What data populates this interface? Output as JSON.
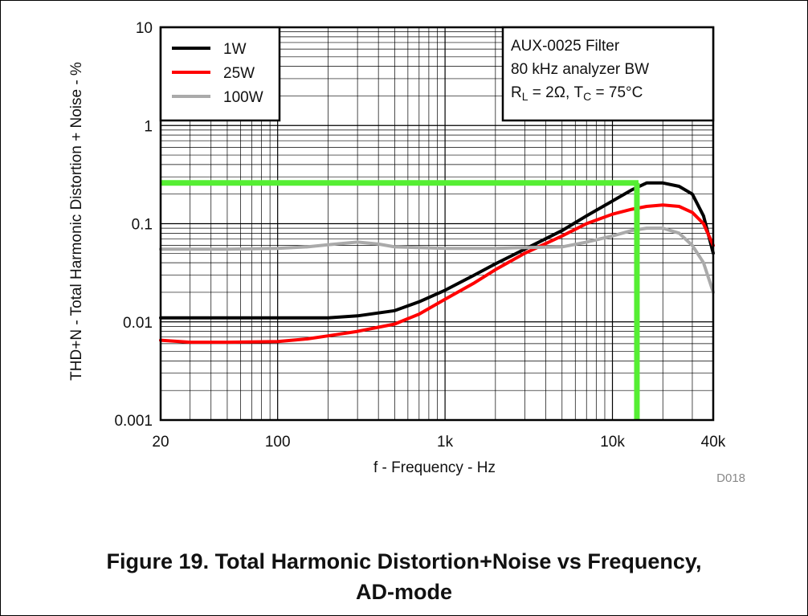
{
  "chart_data": {
    "type": "line",
    "ylabel": "THD+N - Total Harmonic Distortion + Noise - %",
    "xlabel": "f - Frequency - Hz",
    "x_scale": "log",
    "y_scale": "log",
    "xlim": [
      20,
      40000
    ],
    "ylim": [
      0.001,
      10
    ],
    "x_ticks": [
      {
        "value": 20,
        "label": "20"
      },
      {
        "value": 100,
        "label": "100"
      },
      {
        "value": 1000,
        "label": "1k"
      },
      {
        "value": 10000,
        "label": "10k"
      },
      {
        "value": 40000,
        "label": "40k"
      }
    ],
    "y_ticks": [
      {
        "value": 10,
        "label": "10"
      },
      {
        "value": 1,
        "label": "1"
      },
      {
        "value": 0.1,
        "label": "0.1"
      },
      {
        "value": 0.01,
        "label": "0.01"
      },
      {
        "value": 0.001,
        "label": "0.001"
      }
    ],
    "grid": true,
    "legend_placement": "top-left",
    "series": [
      {
        "name": "1W",
        "color": "#000000",
        "x": [
          20,
          30,
          50,
          100,
          200,
          300,
          500,
          700,
          1000,
          1500,
          2000,
          3000,
          5000,
          7000,
          10000,
          13000,
          16000,
          20000,
          25000,
          30000,
          35000,
          40000
        ],
        "y": [
          0.011,
          0.011,
          0.011,
          0.011,
          0.011,
          0.0115,
          0.013,
          0.016,
          0.021,
          0.03,
          0.039,
          0.055,
          0.085,
          0.12,
          0.17,
          0.22,
          0.26,
          0.26,
          0.24,
          0.2,
          0.12,
          0.05
        ]
      },
      {
        "name": "25W",
        "color": "#ff0000",
        "x": [
          20,
          30,
          50,
          100,
          150,
          200,
          300,
          500,
          700,
          1000,
          1500,
          2000,
          3000,
          5000,
          7000,
          10000,
          13000,
          16000,
          20000,
          25000,
          30000,
          35000,
          40000
        ],
        "y": [
          0.0065,
          0.0062,
          0.0062,
          0.0063,
          0.0067,
          0.0072,
          0.008,
          0.0095,
          0.012,
          0.017,
          0.025,
          0.034,
          0.05,
          0.075,
          0.1,
          0.125,
          0.14,
          0.15,
          0.155,
          0.15,
          0.13,
          0.1,
          0.06
        ]
      },
      {
        "name": "100W",
        "color": "#aaaaaa",
        "x": [
          20,
          50,
          100,
          150,
          200,
          300,
          400,
          500,
          1000,
          2000,
          3000,
          5000,
          7000,
          10000,
          13000,
          16000,
          20000,
          25000,
          30000,
          35000,
          40000
        ],
        "y": [
          0.055,
          0.055,
          0.056,
          0.058,
          0.061,
          0.065,
          0.062,
          0.058,
          0.056,
          0.056,
          0.057,
          0.058,
          0.065,
          0.075,
          0.085,
          0.09,
          0.09,
          0.08,
          0.06,
          0.04,
          0.02
        ]
      }
    ],
    "annotation": {
      "lines": [
        {
          "text": "AUX-0025 Filter"
        },
        {
          "text": "80 kHz analyzer BW"
        },
        {
          "parts": [
            {
              "text": "R",
              "sub": false
            },
            {
              "text": "L",
              "sub": true
            },
            {
              "text": " = 2Ω, T",
              "sub": false
            },
            {
              "text": "C",
              "sub": true
            },
            {
              "text": " = 75°C",
              "sub": false
            }
          ]
        }
      ]
    },
    "highlight": {
      "color": "#55ee33",
      "x": 14000,
      "y": 0.26
    },
    "code": "D018"
  },
  "caption": {
    "line1": "Figure 19. Total Harmonic Distortion+Noise vs Frequency,",
    "line2": "AD-mode"
  }
}
